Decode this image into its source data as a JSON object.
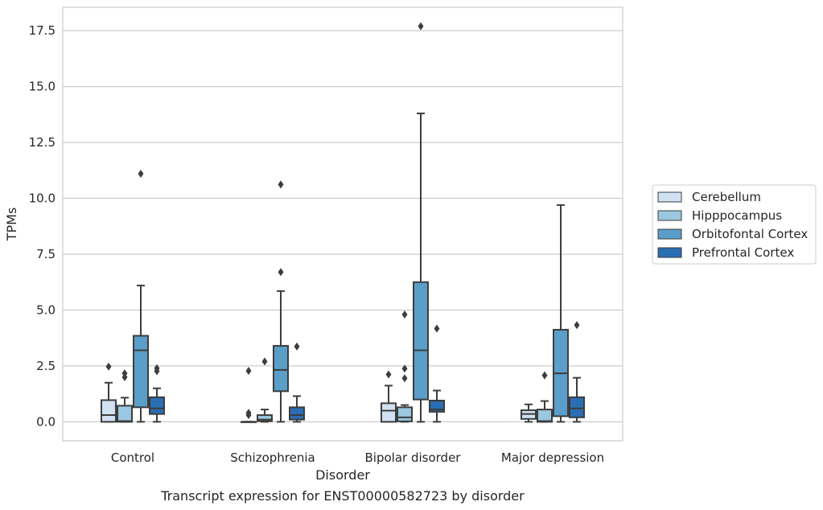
{
  "chart_data": {
    "type": "box",
    "title": "",
    "caption": "Transcript expression for ENST00000582723 by disorder",
    "xlabel": "Disorder",
    "ylabel": "TPMs",
    "ylim": [
      -0.85,
      18.55
    ],
    "yticks": [
      0.0,
      2.5,
      5.0,
      7.5,
      10.0,
      12.5,
      15.0,
      17.5
    ],
    "ytick_labels": [
      "0.0",
      "2.5",
      "5.0",
      "7.5",
      "10.0",
      "12.5",
      "15.0",
      "17.5"
    ],
    "grid": "horizontal",
    "legend_position": "right",
    "categories": [
      "Control",
      "Schizophrenia",
      "Bipolar disorder",
      "Major depression"
    ],
    "series": [
      {
        "name": "Cerebellum",
        "color": "#d0e1f2",
        "boxes": [
          {
            "whisker_low": 0.0,
            "q1": 0.0,
            "median": 0.3,
            "q3": 0.97,
            "whisker_high": 1.75,
            "outliers": [
              2.47
            ]
          },
          {
            "whisker_low": 0.0,
            "q1": 0.0,
            "median": 0.0,
            "q3": 0.0,
            "whisker_high": 0.0,
            "outliers": [
              2.28,
              0.4,
              0.3
            ]
          },
          {
            "whisker_low": 0.0,
            "q1": 0.0,
            "median": 0.5,
            "q3": 0.83,
            "whisker_high": 1.62,
            "outliers": [
              2.12
            ]
          },
          {
            "whisker_low": 0.0,
            "q1": 0.13,
            "median": 0.35,
            "q3": 0.52,
            "whisker_high": 0.78,
            "outliers": []
          }
        ]
      },
      {
        "name": "Hipppocampus",
        "color": "#9ac8e0",
        "boxes": [
          {
            "whisker_low": 0.0,
            "q1": 0.0,
            "median": 0.03,
            "q3": 0.72,
            "whisker_high": 1.08,
            "outliers": [
              2.17,
              2.0
            ]
          },
          {
            "whisker_low": 0.0,
            "q1": 0.03,
            "median": 0.1,
            "q3": 0.3,
            "whisker_high": 0.55,
            "outliers": [
              2.7
            ]
          },
          {
            "whisker_low": 0.0,
            "q1": 0.02,
            "median": 0.2,
            "q3": 0.65,
            "whisker_high": 0.75,
            "outliers": [
              4.8,
              2.38,
              1.95
            ]
          },
          {
            "whisker_low": 0.0,
            "q1": 0.0,
            "median": 0.03,
            "q3": 0.55,
            "whisker_high": 0.93,
            "outliers": [
              2.08
            ]
          }
        ]
      },
      {
        "name": "Orbitofontal Cortex",
        "color": "#5a9ec9",
        "boxes": [
          {
            "whisker_low": 0.0,
            "q1": 0.65,
            "median": 3.2,
            "q3": 3.85,
            "whisker_high": 6.1,
            "outliers": [
              11.1
            ]
          },
          {
            "whisker_low": 0.0,
            "q1": 1.37,
            "median": 2.32,
            "q3": 3.4,
            "whisker_high": 5.85,
            "outliers": [
              10.62,
              6.7
            ]
          },
          {
            "whisker_low": 0.0,
            "q1": 1.0,
            "median": 3.2,
            "q3": 6.25,
            "whisker_high": 13.8,
            "outliers": [
              17.7
            ]
          },
          {
            "whisker_low": 0.0,
            "q1": 0.25,
            "median": 2.17,
            "q3": 4.12,
            "whisker_high": 9.7,
            "outliers": []
          }
        ]
      },
      {
        "name": "Prefrontal Cortex",
        "color": "#2a6eb3",
        "boxes": [
          {
            "whisker_low": 0.0,
            "q1": 0.35,
            "median": 0.6,
            "q3": 1.1,
            "whisker_high": 1.5,
            "outliers": [
              2.4,
              2.27
            ]
          },
          {
            "whisker_low": 0.0,
            "q1": 0.1,
            "median": 0.3,
            "q3": 0.65,
            "whisker_high": 1.15,
            "outliers": [
              3.37
            ]
          },
          {
            "whisker_low": 0.0,
            "q1": 0.45,
            "median": 0.55,
            "q3": 0.95,
            "whisker_high": 1.4,
            "outliers": [
              4.17
            ]
          },
          {
            "whisker_low": 0.0,
            "q1": 0.2,
            "median": 0.6,
            "q3": 1.1,
            "whisker_high": 1.97,
            "outliers": [
              4.33
            ]
          }
        ]
      }
    ]
  }
}
